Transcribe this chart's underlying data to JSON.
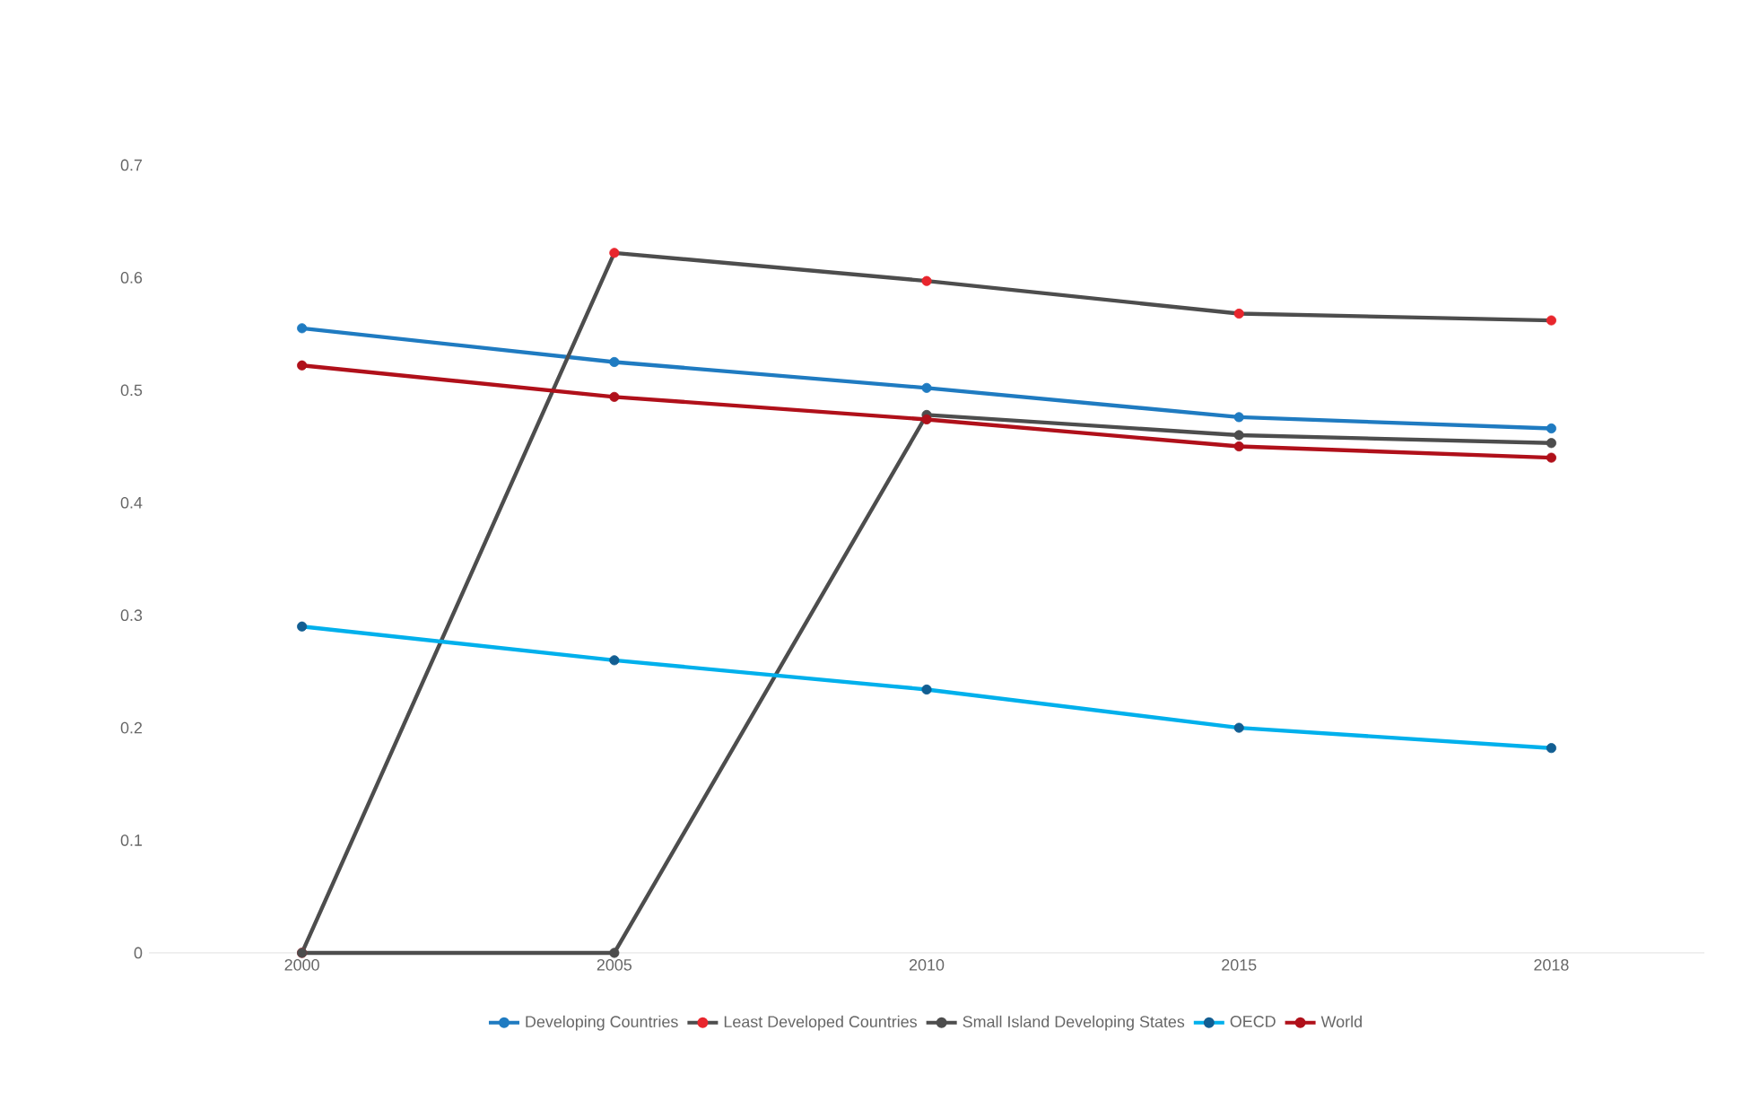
{
  "chart_data": {
    "type": "line",
    "categories": [
      "2000",
      "2005",
      "2010",
      "2015",
      "2018"
    ],
    "ylim": [
      0,
      0.7
    ],
    "yticks": [
      0,
      0.1,
      0.2,
      0.3,
      0.4,
      0.5,
      0.6,
      0.7
    ],
    "grid": false,
    "legend": "bottom",
    "marker": "circle",
    "line_style": "solid",
    "series": [
      {
        "name": "Developing Countries",
        "color": "#1f7bc1",
        "colors": [
          "#1f7bc1",
          "#1f7bc1",
          "#1f7bc1",
          "#1f7bc1",
          "#1f7bc1"
        ],
        "values": [
          0.555,
          0.525,
          0.502,
          0.476,
          0.466
        ]
      },
      {
        "name": "Least Developed Countries",
        "color": "#4d4d4d",
        "colors": [
          "#e8262d",
          "#e8262d",
          "#e8262d",
          "#e8262d",
          "#e8262d"
        ],
        "values": [
          0,
          0.622,
          0.597,
          0.568,
          0.562
        ]
      },
      {
        "name": "Small Island Developing States",
        "color": "#4d4d4d",
        "colors": [
          "#4d4d4d",
          "#4d4d4d",
          "#4d4d4d",
          "#4d4d4d",
          "#4d4d4d"
        ],
        "values": [
          0,
          0,
          0.478,
          0.46,
          0.453
        ]
      },
      {
        "name": "OECD",
        "color": "#00b0ec",
        "colors": [
          "#125e92",
          "#125e92",
          "#125e92",
          "#125e92",
          "#125e92"
        ],
        "values": [
          0.29,
          0.26,
          0.234,
          0.2,
          0.182
        ]
      },
      {
        "name": "World",
        "color": "#b0101a",
        "colors": [
          "#b0101a",
          "#b0101a",
          "#b0101a",
          "#b0101a",
          "#b0101a"
        ],
        "values": [
          0.522,
          0.494,
          0.474,
          0.45,
          0.44
        ]
      }
    ]
  }
}
